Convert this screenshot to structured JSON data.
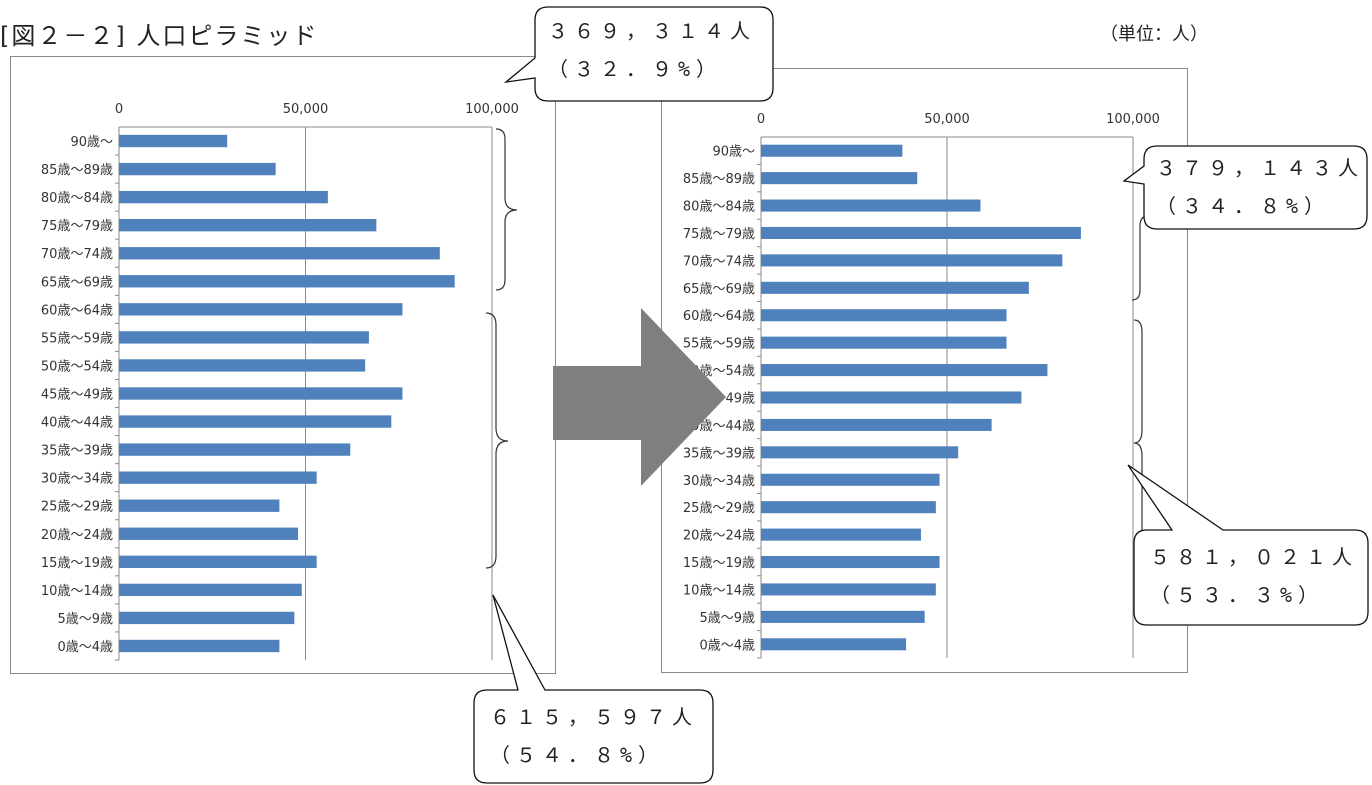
{
  "header": {
    "title": "[図２－２] 人口ピラミッド",
    "unit": "（単位：人）"
  },
  "callouts": {
    "left_top": {
      "count": "３６９，３１４人",
      "pct": "（３２．９%）"
    },
    "left_bottom": {
      "count": "６１５，５９７人",
      "pct": "（５４．８%）"
    },
    "right_top": {
      "count": "３７９，１４３人",
      "pct": "（３４．８%）"
    },
    "right_bottom": {
      "count": "５８１，０２１人",
      "pct": "（５３．３%）"
    }
  },
  "colors": {
    "bar": "#4f81bd",
    "arrow": "#7f7f7f",
    "axis": "#8a8a8a"
  },
  "chart_data": [
    {
      "type": "bar",
      "orientation": "horizontal",
      "categories": [
        "90歳～",
        "85歳～89歳",
        "80歳～84歳",
        "75歳～79歳",
        "70歳～74歳",
        "65歳～69歳",
        "60歳～64歳",
        "55歳～59歳",
        "50歳～54歳",
        "45歳～49歳",
        "40歳～44歳",
        "35歳～39歳",
        "30歳～34歳",
        "25歳～29歳",
        "20歳～24歳",
        "15歳～19歳",
        "10歳～14歳",
        "5歳～9歳",
        "0歳～4歳"
      ],
      "values": [
        29000,
        42000,
        56000,
        69000,
        86000,
        90000,
        76000,
        67000,
        66000,
        76000,
        73000,
        62000,
        53000,
        43000,
        48000,
        53000,
        49000,
        47000,
        43000
      ],
      "xlim": [
        0,
        100000
      ],
      "xticks": [
        "0",
        "50,000",
        "100,000"
      ],
      "grid": true
    },
    {
      "type": "bar",
      "orientation": "horizontal",
      "categories": [
        "90歳～",
        "85歳～89歳",
        "80歳～84歳",
        "75歳～79歳",
        "70歳～74歳",
        "65歳～69歳",
        "60歳～64歳",
        "55歳～59歳",
        "50歳～54歳",
        "45歳～49歳",
        "40歳～44歳",
        "35歳～39歳",
        "30歳～34歳",
        "25歳～29歳",
        "20歳～24歳",
        "15歳～19歳",
        "10歳～14歳",
        "5歳～9歳",
        "0歳～4歳"
      ],
      "values": [
        38000,
        42000,
        59000,
        86000,
        81000,
        72000,
        66000,
        66000,
        77000,
        70000,
        62000,
        53000,
        48000,
        47000,
        43000,
        48000,
        47000,
        44000,
        39000
      ],
      "xlim": [
        0,
        100000
      ],
      "xticks": [
        "0",
        "50,000",
        "100,000"
      ],
      "grid": true
    }
  ]
}
